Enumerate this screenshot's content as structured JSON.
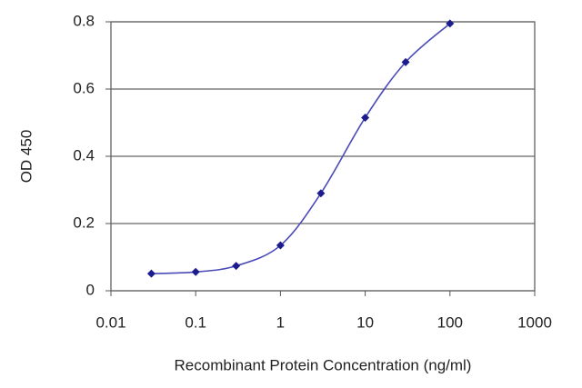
{
  "chart_data": {
    "type": "line",
    "x_label": "Recombinant Protein Concentration (ng/ml)",
    "y_label": "OD 450",
    "x": [
      0.03,
      0.1,
      0.3,
      1,
      3,
      10,
      30,
      100
    ],
    "series": [
      {
        "color": "#1c1c8f",
        "values": [
          0.051,
          0.056,
          0.074,
          0.135,
          0.29,
          0.515,
          0.68,
          0.795
        ]
      }
    ],
    "xscale": "log",
    "xlim": [
      0.01,
      1000
    ],
    "xticks": [
      0.01,
      0.1,
      1,
      10,
      100,
      1000
    ],
    "ylim": [
      0,
      0.8
    ],
    "yticks": [
      0,
      0.2,
      0.4,
      0.6,
      0.8
    ],
    "grid": true
  }
}
